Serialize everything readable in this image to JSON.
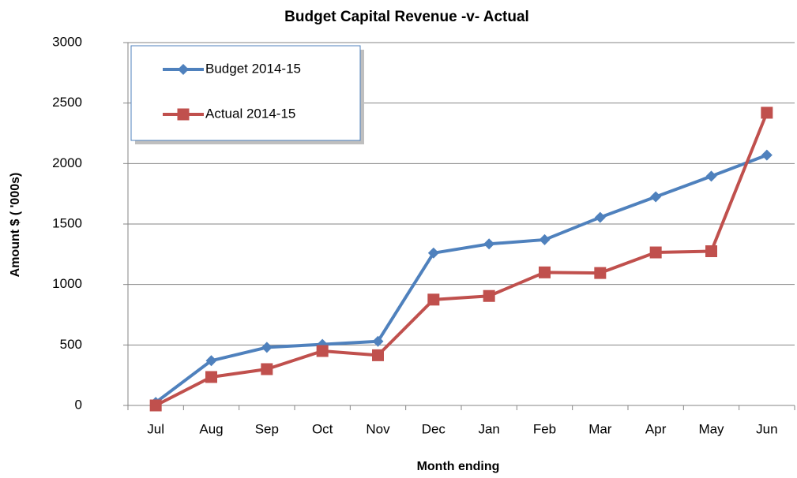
{
  "chart_data": {
    "type": "line",
    "title": "Budget Capital Revenue -v- Actual",
    "x_label": "Month ending",
    "y_label": "Amount $ ( '000s)",
    "categories": [
      "Jul",
      "Aug",
      "Sep",
      "Oct",
      "Nov",
      "Dec",
      "Jan",
      "Feb",
      "Mar",
      "Apr",
      "May",
      "Jun"
    ],
    "series": [
      {
        "name": "Budget 2014-15",
        "color": "#4f81bd",
        "marker": "diamond",
        "values": [
          25,
          370,
          480,
          505,
          530,
          1260,
          1335,
          1370,
          1555,
          1725,
          1895,
          2070
        ]
      },
      {
        "name": "Actual 2014-15",
        "color": "#c0504d",
        "marker": "square",
        "values": [
          0,
          235,
          300,
          450,
          415,
          875,
          905,
          1100,
          1095,
          1265,
          1275,
          2420
        ]
      }
    ],
    "ylim": [
      0,
      3000
    ],
    "yticks": [
      0,
      500,
      1000,
      1500,
      2000,
      2500,
      3000
    ],
    "grid": true,
    "legend": "top-left"
  }
}
